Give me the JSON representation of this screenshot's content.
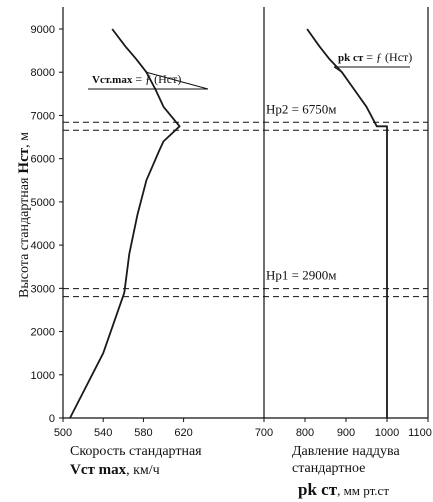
{
  "chart_data": [
    {
      "type": "line",
      "ylabel": "Высота стандартная",
      "ylabel_symbol": "Нст",
      "ylabel_unit": ", м",
      "ylim": [
        0,
        9000
      ],
      "yticks": [
        "0",
        "1000",
        "2000",
        "3000",
        "4000",
        "5000",
        "6000",
        "7000",
        "8000",
        "9000"
      ],
      "xlim": [
        500,
        700
      ],
      "xticks": [
        "500",
        "540",
        "580",
        "620"
      ],
      "xlabel": "Скорость стандартная",
      "xlabel_symbol": "Vст max",
      "xlabel_unit": ", км/ч",
      "series": [
        {
          "annotation": {
            "main": "Vст.max",
            "rest": " = ƒ (Hст)"
          },
          "x": [
            507,
            540,
            561,
            566,
            574,
            583,
            596,
            600,
            616,
            600,
            592,
            583,
            573,
            562,
            549
          ],
          "y": [
            0,
            1500,
            2900,
            3800,
            4700,
            5500,
            6200,
            6400,
            6750,
            7200,
            7600,
            8000,
            8300,
            8600,
            9000
          ]
        }
      ],
      "grid": false
    },
    {
      "type": "line",
      "xlim": [
        700,
        1100
      ],
      "xticks": [
        "700",
        "800",
        "900",
        "1000",
        "1100"
      ],
      "xlabel": "Давление наддува стандартное",
      "xlabel_symbol": "pk ст",
      "xlabel_unit": ", мм рт.ст",
      "series": [
        {
          "annotation": {
            "main": "pk ст",
            "rest": " = ƒ (Hст)"
          },
          "x": [
            1000,
            1000,
            975,
            950,
            920,
            890,
            860,
            835,
            805
          ],
          "y": [
            0,
            6750,
            6750,
            7200,
            7600,
            8000,
            8300,
            8600,
            9000
          ]
        }
      ],
      "grid": false
    }
  ],
  "reference_lines": [
    {
      "label": "Нр1 = 2900м",
      "y": 2900
    },
    {
      "label": "Нр2 = 6750м",
      "y": 6750
    }
  ]
}
